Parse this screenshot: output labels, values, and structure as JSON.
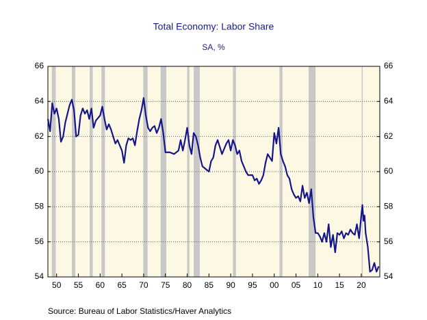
{
  "chart_data": {
    "type": "line",
    "title": "Total Economy: Labor Share",
    "subtitle": "SA, %",
    "source": "Source:  Bureau of Labor Statistics/Haver Analytics",
    "color": "#14148c",
    "x": [
      1948,
      1948.5,
      1949,
      1949.5,
      1950,
      1950.5,
      1951,
      1951.5,
      1952,
      1952.5,
      1953,
      1953.5,
      1954,
      1954.5,
      1955,
      1955.5,
      1956,
      1956.5,
      1957,
      1957.5,
      1958,
      1958.5,
      1959,
      1960,
      1960.5,
      1961,
      1961.5,
      1962,
      1962.5,
      1963,
      1963.5,
      1964,
      1964.5,
      1965,
      1965.5,
      1966,
      1966.5,
      1967,
      1967.5,
      1968,
      1968.5,
      1969,
      1969.5,
      1970,
      1970.5,
      1971,
      1971.5,
      1972,
      1972.5,
      1973,
      1973.5,
      1974,
      1974.5,
      1975,
      1976,
      1977,
      1978,
      1978.5,
      1979,
      1979.5,
      1980,
      1980.5,
      1981,
      1981.5,
      1982,
      1982.5,
      1983,
      1983.5,
      1984,
      1985,
      1985.5,
      1986,
      1986.5,
      1987,
      1987.5,
      1988,
      1988.5,
      1989,
      1989.5,
      1990,
      1990.5,
      1991,
      1991.5,
      1992,
      1992.5,
      1993,
      1993.5,
      1994,
      1995,
      1995.5,
      1996,
      1996.5,
      1997,
      1997.5,
      1998,
      1998.5,
      1999,
      1999.5,
      2000,
      2000.5,
      2001,
      2001.5,
      2002,
      2002.5,
      2003,
      2003.5,
      2004,
      2004.5,
      2005,
      2005.5,
      2006,
      2006.5,
      2007,
      2007.5,
      2008,
      2008.5,
      2009,
      2009.5,
      2010,
      2010.5,
      2011,
      2011.5,
      2012,
      2012.5,
      2013,
      2013.5,
      2014,
      2014.5,
      2015,
      2015.5,
      2016,
      2016.5,
      2017,
      2017.5,
      2018,
      2018.5,
      2019,
      2019.5,
      2020,
      2020.25,
      2020.5,
      2020.75,
      2021,
      2021.5,
      2022,
      2022.5,
      2023,
      2023.5,
      2024
    ],
    "values": [
      63.0,
      62.3,
      63.9,
      63.3,
      63.6,
      63.0,
      61.7,
      62.0,
      62.8,
      63.3,
      63.8,
      64.1,
      63.5,
      62.0,
      62.1,
      63.2,
      63.6,
      63.3,
      63.5,
      63.0,
      63.6,
      62.5,
      62.9,
      63.2,
      63.7,
      63.0,
      62.4,
      62.7,
      62.4,
      62.0,
      61.6,
      61.8,
      61.5,
      61.2,
      60.5,
      61.5,
      61.9,
      61.8,
      61.9,
      61.5,
      62.3,
      63.0,
      63.5,
      64.2,
      63.2,
      62.5,
      62.3,
      62.5,
      62.6,
      62.2,
      62.5,
      63.0,
      62.2,
      61.1,
      61.1,
      61.0,
      61.2,
      61.8,
      61.2,
      61.8,
      62.5,
      61.5,
      61.0,
      62.2,
      62.0,
      61.5,
      60.8,
      60.3,
      60.2,
      60.0,
      60.6,
      60.8,
      61.5,
      61.8,
      61.4,
      61.0,
      61.3,
      61.6,
      61.8,
      61.2,
      61.8,
      61.5,
      61.0,
      61.2,
      60.6,
      60.3,
      60.0,
      59.8,
      59.8,
      59.5,
      59.6,
      59.3,
      59.5,
      59.8,
      60.5,
      61.0,
      60.8,
      60.6,
      62.2,
      61.6,
      62.5,
      61.0,
      60.6,
      60.3,
      59.8,
      59.6,
      59.0,
      58.7,
      58.5,
      58.6,
      58.3,
      59.2,
      58.5,
      58.8,
      58.2,
      59.0,
      57.4,
      56.5,
      56.5,
      56.3,
      56.0,
      56.5,
      56.0,
      57.0,
      55.7,
      56.4,
      55.4,
      56.5,
      56.4,
      56.6,
      56.2,
      56.5,
      56.4,
      56.7,
      56.5,
      56.4,
      57.0,
      56.2,
      57.5,
      58.1,
      57.2,
      57.5,
      56.5,
      55.7,
      54.3,
      54.4,
      54.8,
      54.3,
      54.6
    ],
    "recessions": [
      [
        1948.9,
        1949.8
      ],
      [
        1953.5,
        1954.3
      ],
      [
        1957.6,
        1958.3
      ],
      [
        1960.3,
        1961.1
      ],
      [
        1969.9,
        1970.9
      ],
      [
        1973.9,
        1975.2
      ],
      [
        1980.0,
        1980.5
      ],
      [
        1981.5,
        1982.9
      ],
      [
        1990.5,
        1991.2
      ],
      [
        2001.2,
        2001.9
      ],
      [
        2007.9,
        2009.5
      ],
      [
        2020.1,
        2020.3
      ]
    ],
    "xlim": [
      1948,
      2024.25
    ],
    "xticks": [
      {
        "value": 1950,
        "label": "50"
      },
      {
        "value": 1955,
        "label": "55"
      },
      {
        "value": 1960,
        "label": "60"
      },
      {
        "value": 1965,
        "label": "65"
      },
      {
        "value": 1970,
        "label": "70"
      },
      {
        "value": 1975,
        "label": "75"
      },
      {
        "value": 1980,
        "label": "80"
      },
      {
        "value": 1985,
        "label": "85"
      },
      {
        "value": 1990,
        "label": "90"
      },
      {
        "value": 1995,
        "label": "95"
      },
      {
        "value": 2000,
        "label": "00"
      },
      {
        "value": 2005,
        "label": "05"
      },
      {
        "value": 2010,
        "label": "10"
      },
      {
        "value": 2015,
        "label": "15"
      },
      {
        "value": 2020,
        "label": "20"
      }
    ],
    "ylim": [
      54,
      66
    ],
    "yticks": [
      54,
      56,
      58,
      60,
      62,
      64,
      66
    ],
    "y2lim": [
      54,
      66
    ],
    "y2ticks": [
      54,
      56,
      58,
      60,
      62,
      64,
      66
    ],
    "grid": true
  }
}
